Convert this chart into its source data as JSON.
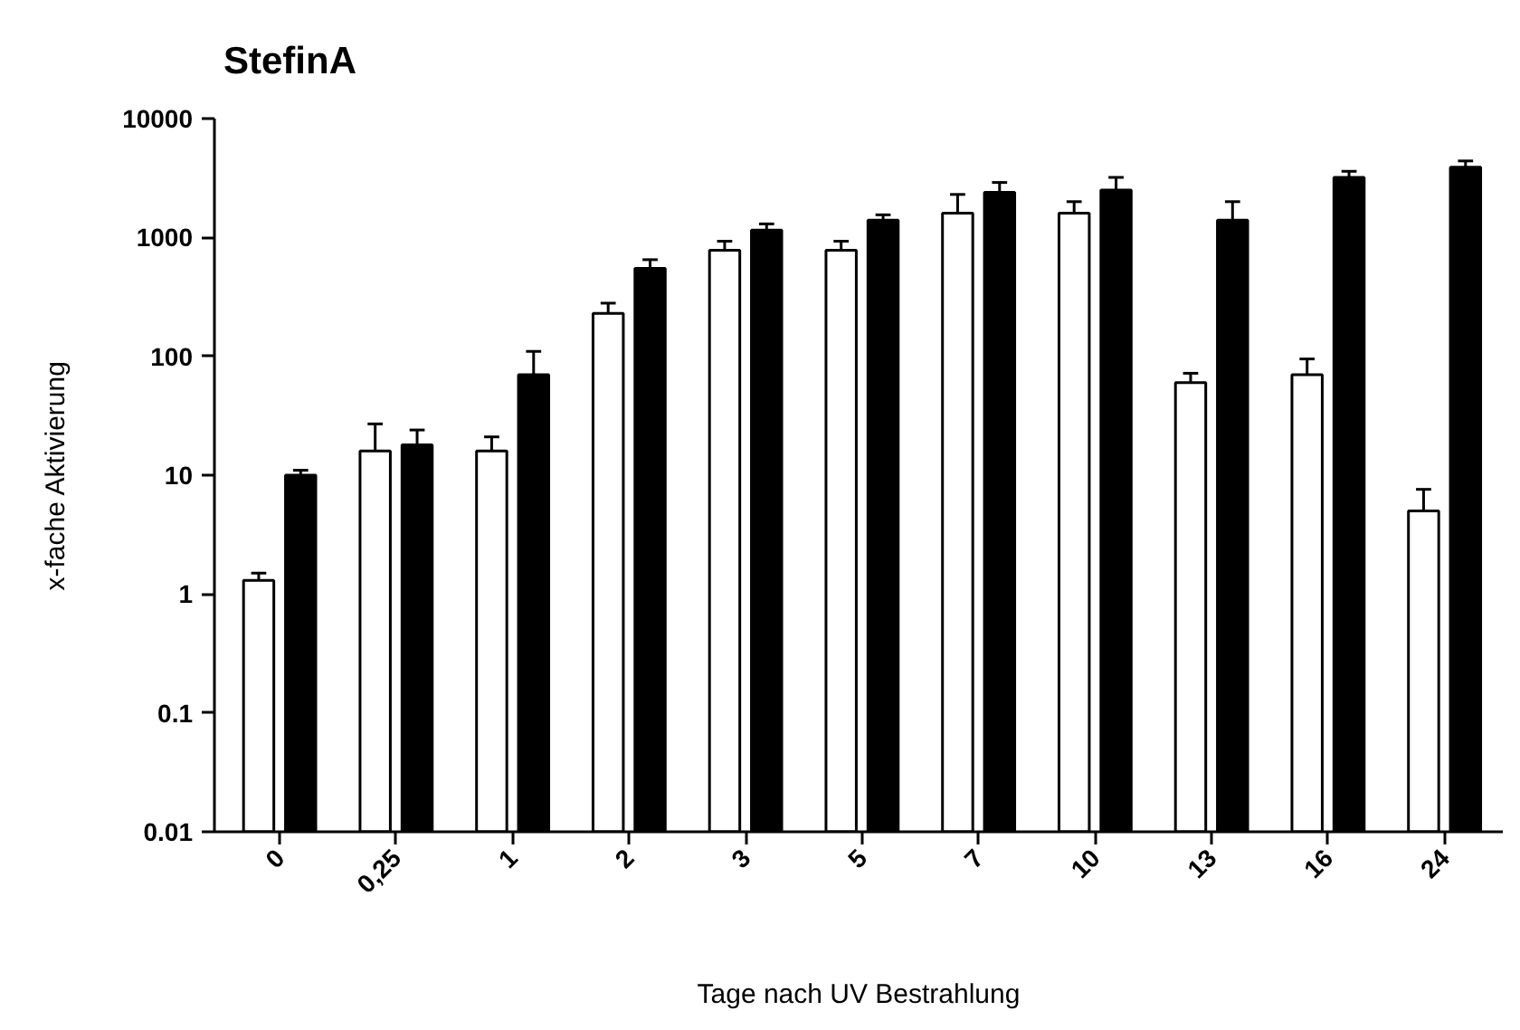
{
  "chart_data": {
    "type": "bar",
    "title": "StefinA",
    "xlabel": "Tage nach UV Bestrahlung",
    "ylabel": "x-fache Aktivierung",
    "categories": [
      "0",
      "0,25",
      "1",
      "2",
      "3",
      "5",
      "7",
      "10",
      "13",
      "16",
      "24"
    ],
    "series": [
      {
        "color": "#ffffff",
        "values": [
          1.3,
          16,
          16,
          230,
          780,
          780,
          1600,
          1600,
          60,
          70,
          5
        ],
        "errors": [
          [
            1.3,
            1.5
          ],
          [
            16,
            27
          ],
          [
            16,
            21
          ],
          [
            230,
            280
          ],
          [
            780,
            930
          ],
          [
            780,
            930
          ],
          [
            1600,
            2300
          ],
          [
            1600,
            2000
          ],
          [
            60,
            72
          ],
          [
            70,
            95
          ],
          [
            5,
            7.6
          ]
        ]
      },
      {
        "color": "#000000",
        "values": [
          10,
          18,
          70,
          550,
          1150,
          1400,
          2400,
          2500,
          1400,
          3200,
          3900
        ],
        "errors": [
          [
            10,
            11
          ],
          [
            18,
            24
          ],
          [
            70,
            110
          ],
          [
            550,
            650
          ],
          [
            1150,
            1300
          ],
          [
            1400,
            1550
          ],
          [
            2400,
            2900
          ],
          [
            2500,
            3200
          ],
          [
            1400,
            2000
          ],
          [
            3200,
            3600
          ],
          [
            3900,
            4400
          ]
        ]
      }
    ],
    "log": "y",
    "ylim": [
      0.01,
      10000
    ],
    "yticks": [
      0.01,
      0.1,
      1,
      10,
      100,
      1000,
      10000
    ],
    "grid": false
  }
}
